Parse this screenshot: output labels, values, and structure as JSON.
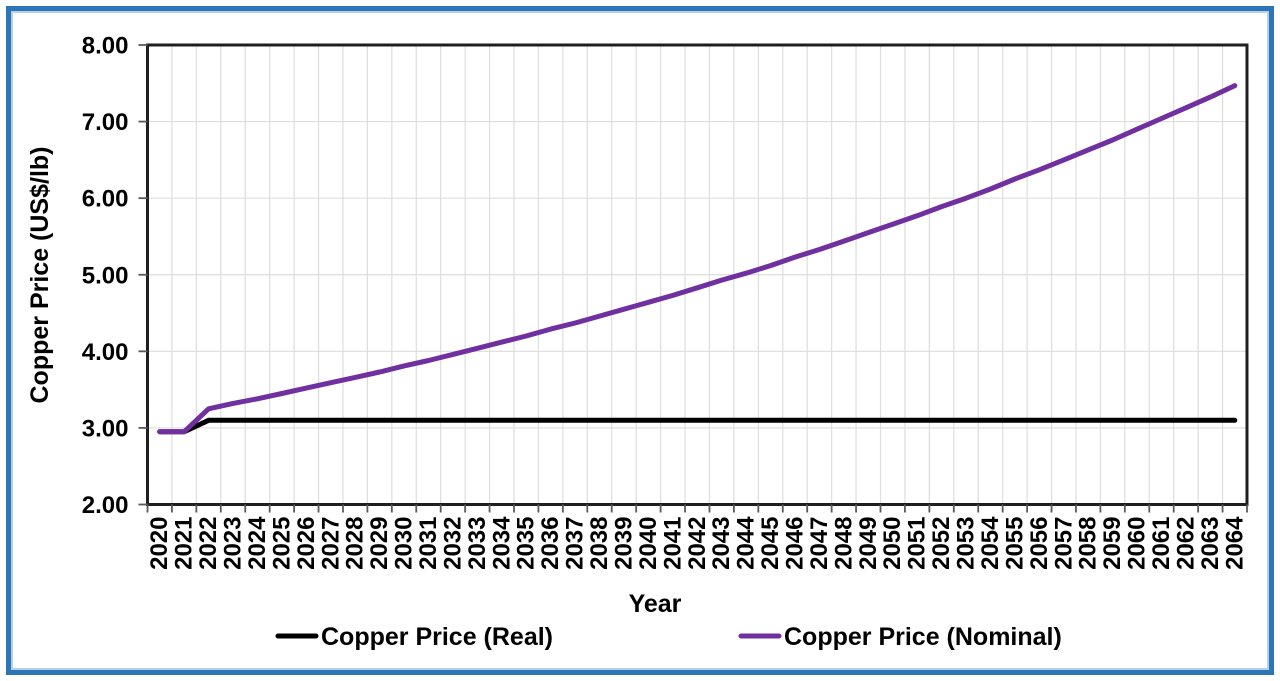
{
  "frame": {
    "border_color": "#2E75B6",
    "inner_highlight_color": "#B4CFEC",
    "background": "#FFFFFF"
  },
  "chart_data": {
    "type": "line",
    "title": "",
    "xlabel": "Year",
    "ylabel": "Copper Price (US$/lb)",
    "ylim": [
      2.0,
      8.0
    ],
    "y_tick_step": 1.0,
    "y_tick_labels": [
      "2.00",
      "3.00",
      "4.00",
      "5.00",
      "6.00",
      "7.00",
      "8.00"
    ],
    "grid": "both",
    "legend_position": "bottom",
    "x": [
      2020,
      2021,
      2022,
      2023,
      2024,
      2025,
      2026,
      2027,
      2028,
      2029,
      2030,
      2031,
      2032,
      2033,
      2034,
      2035,
      2036,
      2037,
      2038,
      2039,
      2040,
      2041,
      2042,
      2043,
      2044,
      2045,
      2046,
      2047,
      2048,
      2049,
      2050,
      2051,
      2052,
      2053,
      2054,
      2055,
      2056,
      2057,
      2058,
      2059,
      2060,
      2061,
      2062,
      2063,
      2064
    ],
    "series": [
      {
        "name": "Copper Price (Real)",
        "color": "#000000",
        "values": [
          2.95,
          2.95,
          3.1,
          3.1,
          3.1,
          3.1,
          3.1,
          3.1,
          3.1,
          3.1,
          3.1,
          3.1,
          3.1,
          3.1,
          3.1,
          3.1,
          3.1,
          3.1,
          3.1,
          3.1,
          3.1,
          3.1,
          3.1,
          3.1,
          3.1,
          3.1,
          3.1,
          3.1,
          3.1,
          3.1,
          3.1,
          3.1,
          3.1,
          3.1,
          3.1,
          3.1,
          3.1,
          3.1,
          3.1,
          3.1,
          3.1,
          3.1,
          3.1,
          3.1,
          3.1
        ]
      },
      {
        "name": "Copper Price (Nominal)",
        "color": "#7030A0",
        "values": [
          2.95,
          2.95,
          3.25,
          3.32,
          3.38,
          3.45,
          3.52,
          3.59,
          3.66,
          3.73,
          3.81,
          3.88,
          3.96,
          4.04,
          4.12,
          4.2,
          4.29,
          4.37,
          4.46,
          4.55,
          4.64,
          4.73,
          4.83,
          4.93,
          5.02,
          5.12,
          5.23,
          5.33,
          5.44,
          5.55,
          5.66,
          5.77,
          5.89,
          6.0,
          6.12,
          6.25,
          6.37,
          6.5,
          6.63,
          6.76,
          6.9,
          7.04,
          7.18,
          7.32,
          7.47
        ]
      }
    ]
  }
}
